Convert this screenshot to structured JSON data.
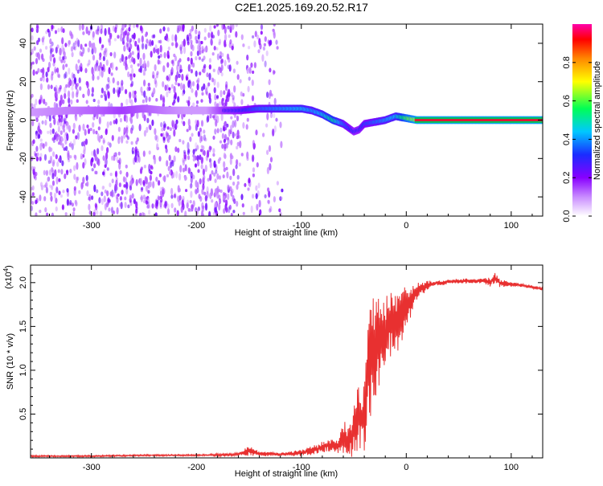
{
  "title": "C2E1.2025.169.20.52.R17",
  "chart_data": [
    {
      "type": "heatmap",
      "xlabel": "Height of straight line (km)",
      "ylabel": "Frequency (Hz)",
      "xlim": [
        -358,
        130
      ],
      "ylim": [
        -50,
        50
      ],
      "x_ticks": [
        -300,
        -200,
        -100,
        0,
        100
      ],
      "y_ticks": [
        -40,
        -20,
        0,
        20,
        40
      ],
      "colorbar": {
        "label": "Normalized spectral amplitude",
        "range": [
          0,
          1
        ],
        "ticks": [
          "0.0",
          "0.2",
          "0.4",
          "0.6",
          "0.8"
        ],
        "colors": [
          "#ffffff",
          "#8800ff",
          "#0044ff",
          "#00e5ff",
          "#00ff44",
          "#ffff00",
          "#ff8800",
          "#ff0000",
          "#ff00aa"
        ]
      },
      "noise_region_x": [
        -358,
        -118
      ],
      "doppler_trace": {
        "x": [
          -358,
          -320,
          -290,
          -270,
          -250,
          -230,
          -210,
          -190,
          -175,
          -160,
          -140,
          -120,
          -100,
          -90,
          -80,
          -70,
          -60,
          -50,
          -45,
          -40,
          -30,
          -20,
          -10,
          0,
          10,
          130
        ],
        "y": [
          4,
          5,
          5,
          5,
          6,
          5,
          5,
          5,
          5,
          5,
          6,
          6,
          6,
          5,
          3,
          0,
          -2,
          -6,
          -5,
          -2,
          -1,
          0,
          2,
          1,
          0,
          0
        ],
        "amplitude": [
          0.2,
          0.25,
          0.3,
          0.35,
          0.3,
          0.25,
          0.2,
          0.2,
          0.35,
          0.4,
          0.5,
          0.55,
          0.6,
          0.55,
          0.6,
          0.7,
          0.5,
          0.4,
          0.4,
          0.45,
          0.5,
          0.55,
          0.6,
          0.8,
          0.9,
          0.9
        ]
      },
      "grid": false
    },
    {
      "type": "line",
      "xlabel": "Height of straight line (km)",
      "ylabel": "SNR (10 * v/v)",
      "y_multiplier": "(x10",
      "y_multiplier_exp": "4",
      "xlim": [
        -358,
        130
      ],
      "ylim": [
        0,
        2.2
      ],
      "x_ticks": [
        -300,
        -200,
        -100,
        0,
        100
      ],
      "y_ticks": [
        "0.5",
        "1.0",
        "1.5",
        "2.0"
      ],
      "series": [
        {
          "color": "#e83030",
          "x": [
            -358,
            -300,
            -250,
            -200,
            -160,
            -150,
            -140,
            -120,
            -100,
            -85,
            -75,
            -65,
            -60,
            -55,
            -50,
            -45,
            -42,
            -38,
            -35,
            -30,
            -25,
            -20,
            -15,
            -10,
            -5,
            0,
            5,
            10,
            15,
            20,
            25,
            30,
            35,
            40,
            50,
            60,
            70,
            80,
            85,
            90,
            100,
            110,
            120,
            130
          ],
          "y": [
            0.02,
            0.02,
            0.03,
            0.03,
            0.04,
            0.08,
            0.05,
            0.04,
            0.06,
            0.1,
            0.15,
            0.12,
            0.25,
            0.2,
            0.3,
            0.5,
            0.45,
            0.8,
            1.1,
            1.2,
            1.3,
            1.45,
            1.55,
            1.5,
            1.6,
            1.7,
            1.82,
            1.9,
            1.94,
            1.97,
            1.98,
            2.0,
            2.0,
            2.01,
            2.02,
            2.02,
            2.02,
            2.01,
            2.05,
            1.99,
            1.98,
            1.97,
            1.95,
            1.93
          ],
          "noise": [
            0.01,
            0.01,
            0.01,
            0.01,
            0.02,
            0.06,
            0.03,
            0.02,
            0.04,
            0.06,
            0.08,
            0.08,
            0.2,
            0.18,
            0.3,
            0.45,
            0.45,
            0.7,
            0.8,
            0.7,
            0.6,
            0.5,
            0.45,
            0.4,
            0.35,
            0.3,
            0.2,
            0.12,
            0.08,
            0.06,
            0.04,
            0.03,
            0.03,
            0.03,
            0.03,
            0.03,
            0.03,
            0.06,
            0.08,
            0.05,
            0.03,
            0.02,
            0.02,
            0.02
          ]
        }
      ],
      "grid": false
    }
  ]
}
